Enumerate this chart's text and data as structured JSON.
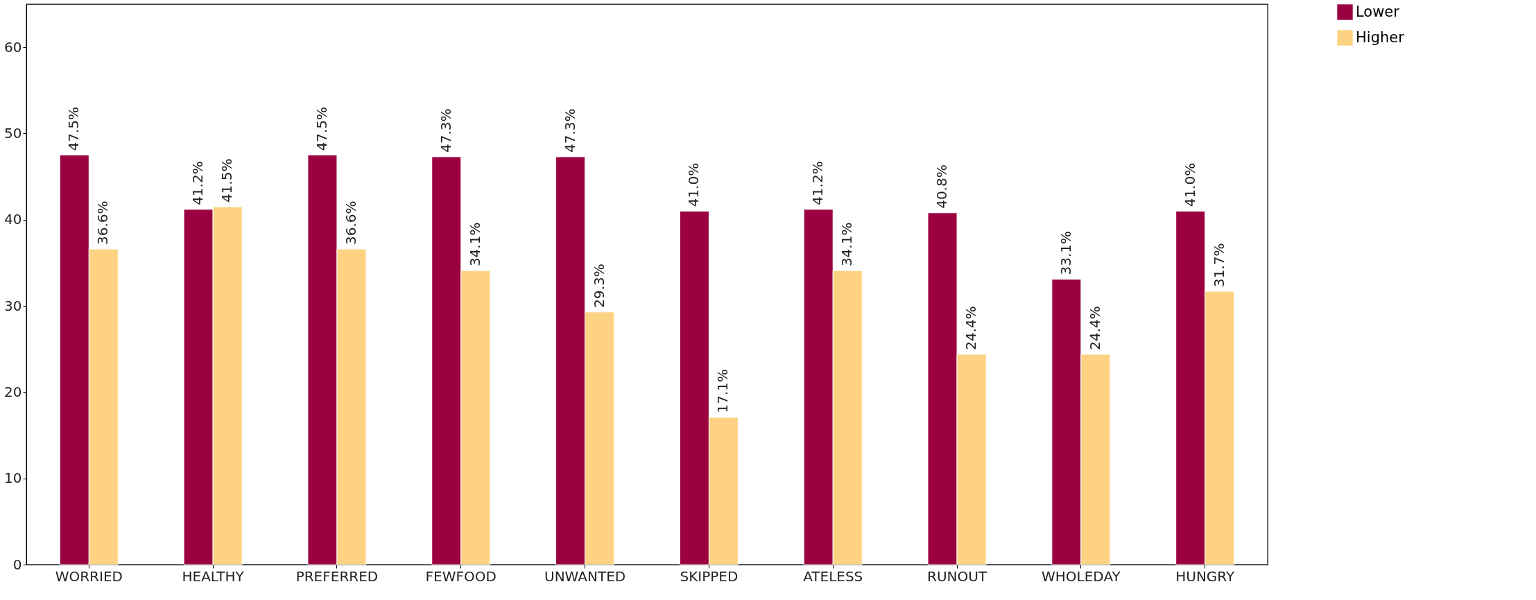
{
  "chart_data": {
    "type": "bar",
    "categories": [
      "WORRIED",
      "HEALTHY",
      "PREFERRED",
      "FEWFOOD",
      "UNWANTED",
      "SKIPPED",
      "ATELESS",
      "RUNOUT",
      "WHOLEDAY",
      "HUNGRY"
    ],
    "series": [
      {
        "name": "Lower",
        "color": "#9b0040",
        "values": [
          47.5,
          41.2,
          47.5,
          47.3,
          47.3,
          41.0,
          41.2,
          40.8,
          33.1,
          41.0
        ],
        "value_labels": [
          "47.5%",
          "41.2%",
          "47.5%",
          "47.3%",
          "47.3%",
          "41.0%",
          "41.2%",
          "40.8%",
          "33.1%",
          "41.0%"
        ]
      },
      {
        "name": "Higher",
        "color": "#fdd383",
        "values": [
          36.6,
          41.5,
          36.6,
          34.1,
          29.3,
          17.1,
          34.1,
          24.4,
          24.4,
          31.7
        ],
        "value_labels": [
          "36.6%",
          "41.5%",
          "36.6%",
          "34.1%",
          "29.3%",
          "17.1%",
          "34.1%",
          "24.4%",
          "24.4%",
          "31.7%"
        ]
      }
    ],
    "ylim": [
      0,
      65
    ],
    "yticks": [
      0,
      10,
      20,
      30,
      40,
      50,
      60
    ],
    "grid": false,
    "legend": "top right"
  }
}
